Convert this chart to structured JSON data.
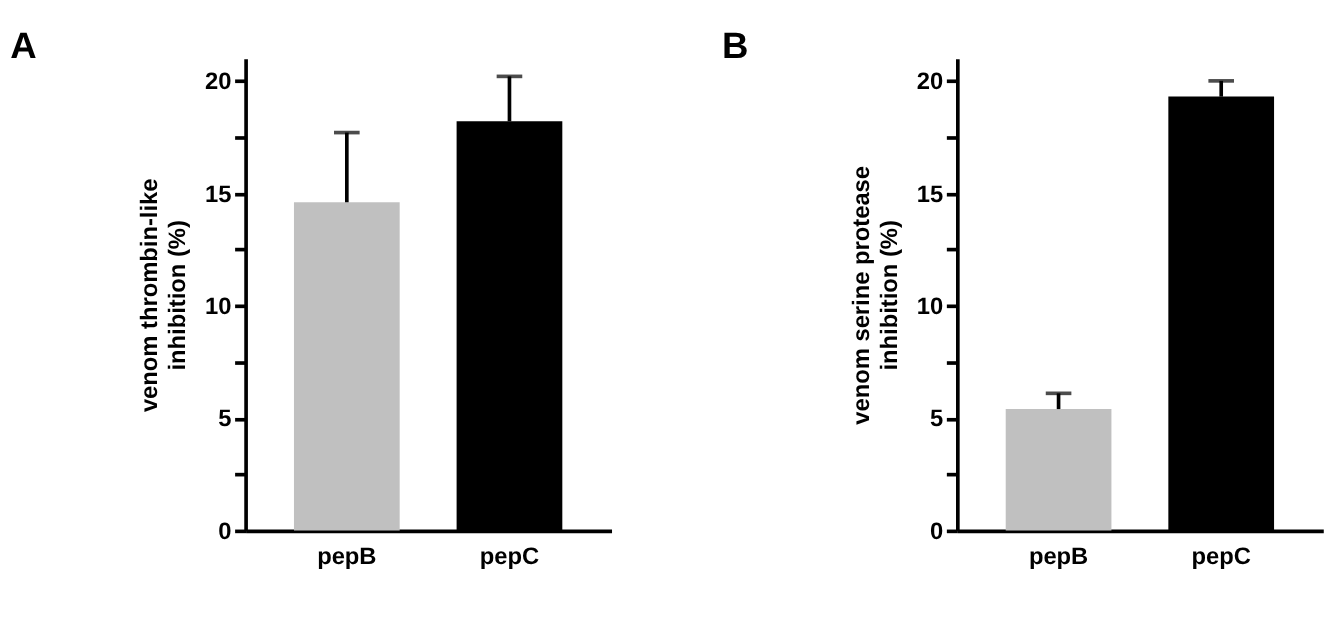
{
  "chart_data": [
    {
      "type": "bar",
      "title": "A",
      "ylabel": "venom thrombin-like inhibition (%)",
      "categories": [
        "pepB",
        "pepC"
      ],
      "values": [
        14.6,
        18.2
      ],
      "colors": [
        "#c0c0c0",
        "#000000"
      ],
      "errors": [
        [
          14.6,
          17.7
        ],
        [
          18.2,
          20.2
        ]
      ],
      "ylim": [
        0,
        21
      ],
      "yticks": [
        0,
        {
          "value": 2.5,
          "label": null
        },
        5,
        {
          "value": 7.5,
          "label": null
        },
        10,
        {
          "value": 12.5,
          "label": null
        },
        15,
        {
          "value": 17.5,
          "label": null
        },
        20
      ],
      "grid": false
    },
    {
      "type": "bar",
      "title": "B",
      "ylabel": "venom serine protease inhibition (%)",
      "categories": [
        "pepB",
        "pepC"
      ],
      "values": [
        5.4,
        19.3
      ],
      "colors": [
        "#c0c0c0",
        "#000000"
      ],
      "errors": [
        [
          5.4,
          6.1
        ],
        [
          19.3,
          20.0
        ]
      ],
      "ylim": [
        0,
        21
      ],
      "yticks": [
        0,
        {
          "value": 2.5,
          "label": null
        },
        5,
        {
          "value": 7.5,
          "label": null
        },
        10,
        {
          "value": 12.5,
          "label": null
        },
        15,
        {
          "value": 17.5,
          "label": null
        },
        20
      ],
      "grid": false
    }
  ]
}
